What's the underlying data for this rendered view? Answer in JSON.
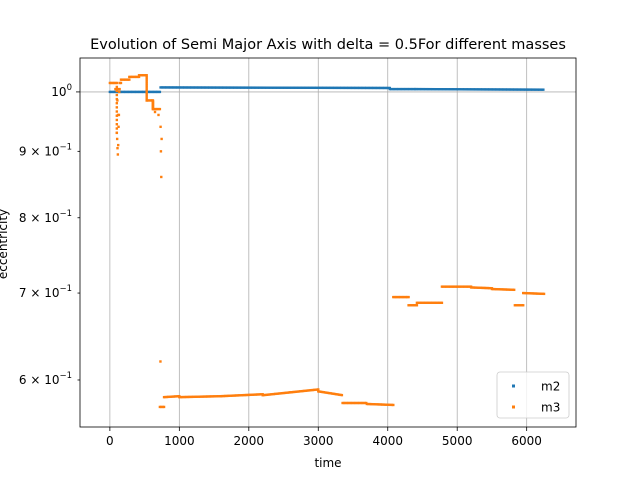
{
  "chart_data": {
    "type": "scatter",
    "title": "Evolution of Semi Major Axis with delta = 0.5For different masses",
    "xlabel": "time",
    "ylabel": "eccentricity",
    "xlim": [
      -430,
      6710
    ],
    "ylim": [
      0.552,
      1.062
    ],
    "yscale": "log",
    "grid": true,
    "legend_position": "lower-right",
    "x_ticks": [
      {
        "value": 0,
        "label": "0"
      },
      {
        "value": 1000,
        "label": "1000"
      },
      {
        "value": 2000,
        "label": "2000"
      },
      {
        "value": 3000,
        "label": "3000"
      },
      {
        "value": 4000,
        "label": "4000"
      },
      {
        "value": 5000,
        "label": "5000"
      },
      {
        "value": 6000,
        "label": "6000"
      }
    ],
    "y_ticks": [
      {
        "value": 1.0,
        "base": "10",
        "exp": "0",
        "mant": ""
      },
      {
        "value": 0.9,
        "base": "10",
        "exp": "−1",
        "mant": "9 × "
      },
      {
        "value": 0.8,
        "base": "10",
        "exp": "−1",
        "mant": "8 × "
      },
      {
        "value": 0.7,
        "base": "10",
        "exp": "−1",
        "mant": "7 × "
      },
      {
        "value": 0.6,
        "base": "10",
        "exp": "−1",
        "mant": "6 × "
      }
    ],
    "series": [
      {
        "name": "m2",
        "color": "#1f77b4",
        "segments": [
          {
            "x": [
              0,
              730
            ],
            "y": [
              1.0,
              1.0
            ]
          },
          {
            "x": [
              730,
              4030
            ],
            "y": [
              1.008,
              1.007
            ]
          },
          {
            "x": [
              4030,
              4400
            ],
            "y": [
              1.005,
              1.005
            ]
          },
          {
            "x": [
              4400,
              6250
            ],
            "y": [
              1.005,
              1.004
            ]
          }
        ]
      },
      {
        "name": "m3",
        "color": "#ff7f0e",
        "segments": [
          {
            "x": [
              0,
              80
            ],
            "y": [
              1.016,
              1.016
            ]
          },
          {
            "x": [
              80,
              140
            ],
            "y": [
              1.005,
              1.005
            ]
          },
          {
            "x": [
              140,
              160
            ],
            "y": [
              1.016,
              1.016
            ]
          },
          {
            "x": [
              160,
              280
            ],
            "y": [
              1.022,
              1.022
            ]
          },
          {
            "x": [
              280,
              420
            ],
            "y": [
              1.027,
              1.027
            ]
          },
          {
            "x": [
              420,
              530
            ],
            "y": [
              1.03,
              1.03
            ]
          },
          {
            "x": [
              530,
              620
            ],
            "y": [
              0.985,
              0.985
            ]
          },
          {
            "x": [
              620,
              720
            ],
            "y": [
              0.97,
              0.97
            ]
          },
          {
            "x": [
              720,
              780
            ],
            "y": [
              0.572,
              0.572
            ]
          },
          {
            "x": [
              780,
              1000
            ],
            "y": [
              0.582,
              0.583
            ]
          },
          {
            "x": [
              1000,
              1600
            ],
            "y": [
              0.582,
              0.583
            ]
          },
          {
            "x": [
              1600,
              2200
            ],
            "y": [
              0.583,
              0.585
            ]
          },
          {
            "x": [
              2200,
              2600
            ],
            "y": [
              0.584,
              0.587
            ]
          },
          {
            "x": [
              2600,
              3000
            ],
            "y": [
              0.587,
              0.59
            ]
          },
          {
            "x": [
              3000,
              3350
            ],
            "y": [
              0.588,
              0.584
            ]
          },
          {
            "x": [
              3350,
              3700
            ],
            "y": [
              0.576,
              0.576
            ]
          },
          {
            "x": [
              3700,
              4080
            ],
            "y": [
              0.575,
              0.574
            ]
          },
          {
            "x": [
              4080,
              4300
            ],
            "y": [
              0.695,
              0.695
            ]
          },
          {
            "x": [
              4300,
              4420
            ],
            "y": [
              0.685,
              0.685
            ]
          },
          {
            "x": [
              4420,
              4780
            ],
            "y": [
              0.688,
              0.688
            ]
          },
          {
            "x": [
              4780,
              5200
            ],
            "y": [
              0.708,
              0.708
            ]
          },
          {
            "x": [
              5200,
              5500
            ],
            "y": [
              0.707,
              0.706
            ]
          },
          {
            "x": [
              5500,
              5830
            ],
            "y": [
              0.705,
              0.704
            ]
          },
          {
            "x": [
              5830,
              5950
            ],
            "y": [
              0.685,
              0.685
            ]
          },
          {
            "x": [
              5950,
              6250
            ],
            "y": [
              0.7,
              0.699
            ]
          }
        ],
        "scatter_points": [
          {
            "x": 100,
            "y": 0.93
          },
          {
            "x": 105,
            "y": 0.92
          },
          {
            "x": 110,
            "y": 0.905
          },
          {
            "x": 115,
            "y": 0.895
          },
          {
            "x": 120,
            "y": 0.91
          },
          {
            "x": 125,
            "y": 0.94
          },
          {
            "x": 130,
            "y": 0.96
          },
          {
            "x": 108,
            "y": 0.985
          },
          {
            "x": 118,
            "y": 0.96
          },
          {
            "x": 135,
            "y": 1.0
          },
          {
            "x": 650,
            "y": 0.965
          },
          {
            "x": 700,
            "y": 0.96
          },
          {
            "x": 730,
            "y": 0.94
          },
          {
            "x": 735,
            "y": 0.9
          },
          {
            "x": 740,
            "y": 0.86
          },
          {
            "x": 745,
            "y": 0.92
          },
          {
            "x": 728,
            "y": 0.62
          }
        ],
        "vertical_transitions": [
          {
            "x": 530,
            "y": [
              0.985,
              1.03
            ]
          },
          {
            "x": 620,
            "y": [
              0.97,
              0.985
            ]
          },
          {
            "x": 100,
            "y": [
              0.93,
              1.016
            ]
          }
        ]
      }
    ]
  }
}
